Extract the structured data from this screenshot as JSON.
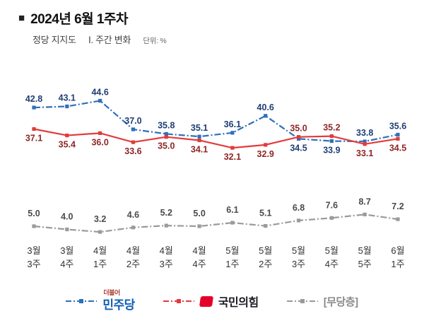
{
  "header": {
    "bullet": "■",
    "title": "2024년 6월 1주차",
    "subtitle_left": "정당 지지도",
    "subtitle_section": "Ⅰ. 주간 변화",
    "unit": "단위: %"
  },
  "chart_data": {
    "type": "line",
    "title": "정당 지지도 주간 변화",
    "unit": "%",
    "grid": false,
    "legend_position": "bottom",
    "ylim_main": [
      31,
      46
    ],
    "ylim_sub": [
      0,
      10
    ],
    "categories": [
      [
        "3월",
        "3주"
      ],
      [
        "3월",
        "4주"
      ],
      [
        "4월",
        "1주"
      ],
      [
        "4월",
        "2주"
      ],
      [
        "4월",
        "3주"
      ],
      [
        "4월",
        "4주"
      ],
      [
        "5월",
        "1주"
      ],
      [
        "5월",
        "2주"
      ],
      [
        "5월",
        "3주"
      ],
      [
        "5월",
        "4주"
      ],
      [
        "5월",
        "5주"
      ],
      [
        "6월",
        "1주"
      ]
    ],
    "series": [
      {
        "name": "민주당",
        "color": "#2f6fba",
        "label_color": "#1f3e75",
        "dash": "9 3 2 3",
        "axis": "main",
        "values": [
          42.8,
          43.1,
          44.6,
          37.0,
          35.8,
          35.1,
          36.1,
          40.6,
          34.5,
          33.9,
          33.8,
          35.6
        ]
      },
      {
        "name": "국민의힘",
        "color": "#e23b3b",
        "label_color": "#8f2626",
        "dash": "",
        "axis": "main",
        "values": [
          37.1,
          35.4,
          36.0,
          33.6,
          35.0,
          34.1,
          32.1,
          32.9,
          35.0,
          35.2,
          33.1,
          34.5
        ]
      },
      {
        "name": "무당층",
        "color": "#9a9a9a",
        "label_color": "#4a4a4a",
        "dash": "9 3 2 3",
        "axis": "sub",
        "values": [
          5.0,
          4.0,
          3.2,
          4.6,
          5.2,
          5.0,
          6.1,
          5.1,
          6.8,
          7.6,
          8.7,
          7.2
        ]
      }
    ]
  },
  "legend": {
    "minjoo_prefix": "더불어",
    "minjoo_label": "민주당",
    "ppp_label": "국민의힘",
    "mudang_label": "[무당층]"
  }
}
